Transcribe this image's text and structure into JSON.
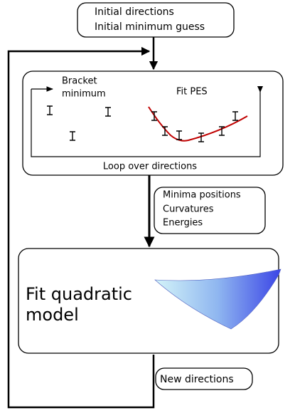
{
  "top_box": {
    "lines": [
      "Initial directions",
      "Initial minimum guess"
    ]
  },
  "loop_box": {
    "bracket_label": {
      "lines": [
        "Bracket",
        "minimum"
      ]
    },
    "fit_label": "Fit PES",
    "caption": "Loop over directions"
  },
  "outputs_box": {
    "lines": [
      "Minima positions",
      "Curvatures",
      "Energies"
    ]
  },
  "model_box": {
    "lines": [
      "Fit quadratic",
      "model"
    ]
  },
  "new_directions": "New directions"
}
